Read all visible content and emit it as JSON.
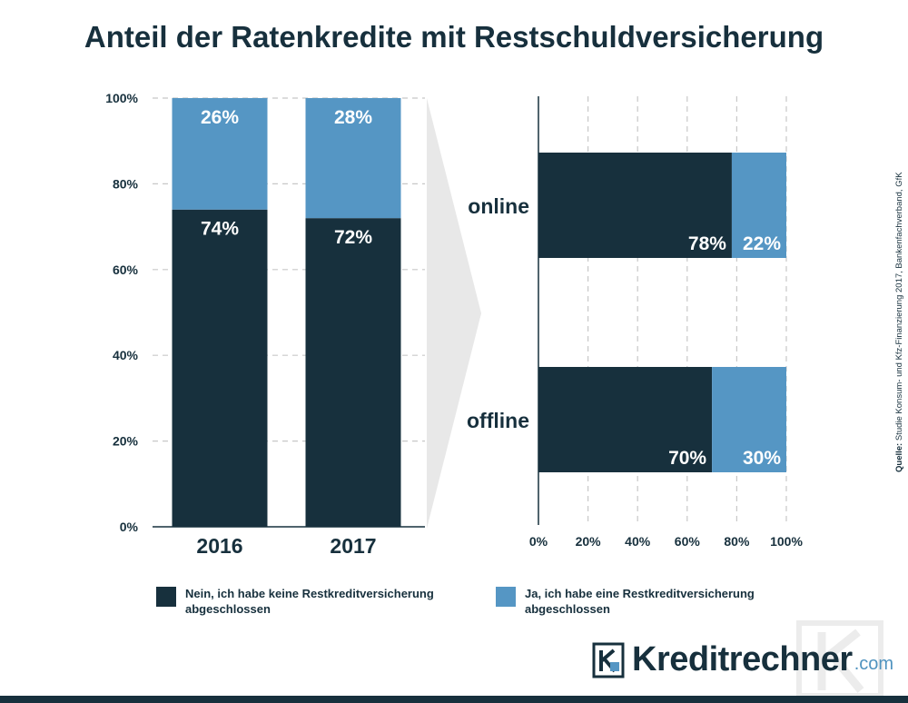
{
  "title": "Anteil der Ratenkredite mit Restschuldversicherung",
  "colors": {
    "dark": "#17303d",
    "light": "#5596c4",
    "grid": "#c8c8c8",
    "arrow": "#e8e8e8"
  },
  "chart_data": [
    {
      "type": "bar",
      "orientation": "vertical",
      "stacked": true,
      "categories": [
        "2016",
        "2017"
      ],
      "series": [
        {
          "name": "Nein, ich habe keine Restkreditversicherung abgeschlossen",
          "values": [
            74,
            72
          ],
          "labels": [
            "74%",
            "72%"
          ]
        },
        {
          "name": "Ja, ich habe eine Restkreditversicherung abgeschlossen",
          "values": [
            26,
            28
          ],
          "labels": [
            "26%",
            "28%"
          ]
        }
      ],
      "ylim": [
        0,
        100
      ],
      "yticks": [
        "0%",
        "20%",
        "40%",
        "60%",
        "80%",
        "100%"
      ],
      "grid": true
    },
    {
      "type": "bar",
      "orientation": "horizontal",
      "stacked": true,
      "categories": [
        "online",
        "offline"
      ],
      "series": [
        {
          "name": "Nein, ich habe keine Restkreditversicherung abgeschlossen",
          "values": [
            78,
            70
          ],
          "labels": [
            "78%",
            "70%"
          ]
        },
        {
          "name": "Ja, ich habe eine Restkreditversicherung abgeschlossen",
          "values": [
            22,
            30
          ],
          "labels": [
            "22%",
            "30%"
          ]
        }
      ],
      "xlim": [
        0,
        100
      ],
      "xticks": [
        "0%",
        "20%",
        "40%",
        "60%",
        "80%",
        "100%"
      ],
      "grid": true
    }
  ],
  "legend": [
    {
      "label": "Nein, ich habe keine Restkreditversicherung abgeschlossen",
      "color": "#17303d"
    },
    {
      "label": "Ja, ich habe eine Restkreditversicherung abgeschlossen",
      "color": "#5596c4"
    }
  ],
  "source": {
    "prefix": "Quelle:",
    "text": "Studie Konsum- und Kfz-Finanzierung 2017, Bankenfachverband, GfK"
  },
  "logo": {
    "name": "Kreditrechner",
    "tld": ".com"
  }
}
